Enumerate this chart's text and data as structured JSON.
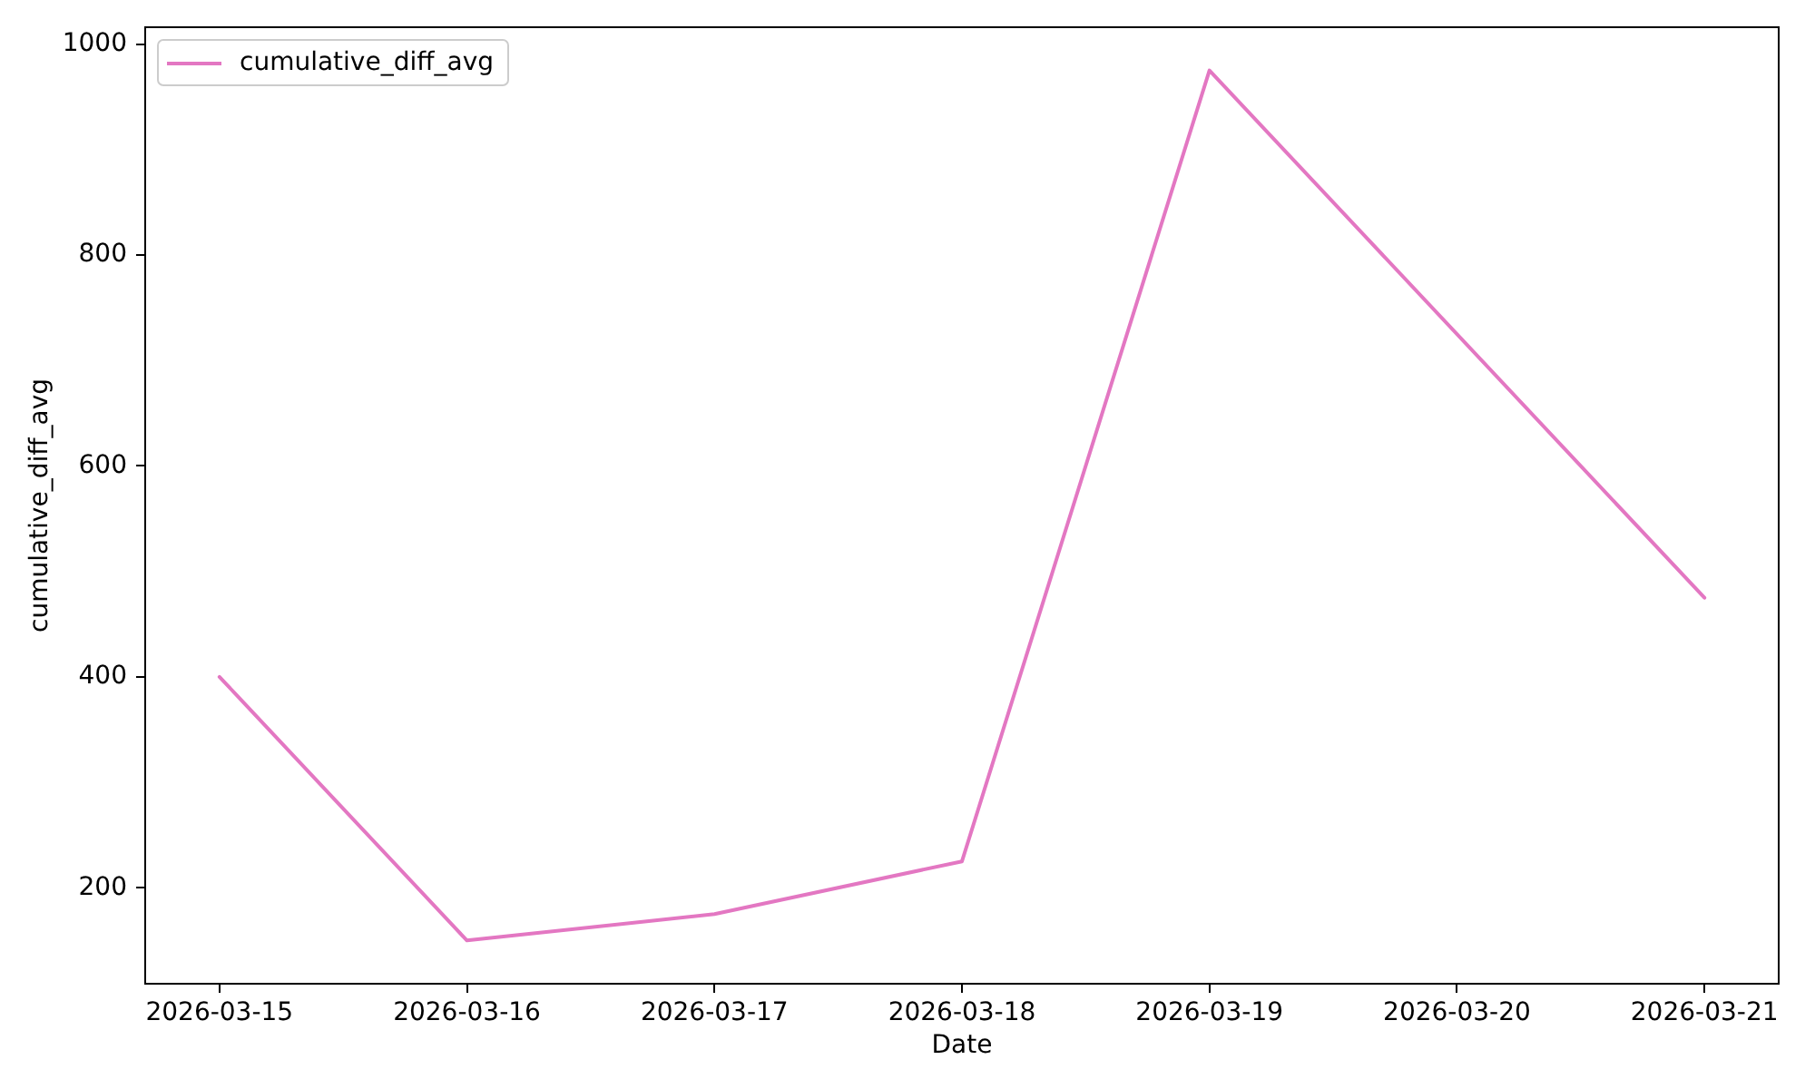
{
  "chart_data": {
    "type": "line",
    "xlabel": "Date",
    "ylabel": "cumulative_diff_avg",
    "x": [
      "2026-03-15",
      "2026-03-16",
      "2026-03-17",
      "2026-03-18",
      "2026-03-19",
      "2026-03-21"
    ],
    "series": [
      {
        "name": "cumulative_diff_avg",
        "color": "#e377c2",
        "values": [
          400,
          150,
          175,
          225,
          975,
          475
        ]
      }
    ],
    "xlim": [
      "2026-03-14T16:48",
      "2026-03-21T07:12"
    ],
    "xticks": [
      "2026-03-15",
      "2026-03-16",
      "2026-03-17",
      "2026-03-18",
      "2026-03-19",
      "2026-03-20",
      "2026-03-21"
    ],
    "ylim": [
      109,
      1016
    ],
    "yticks": [
      200,
      400,
      600,
      800,
      1000
    ],
    "grid": false,
    "legend": "top left",
    "marker": "none"
  }
}
